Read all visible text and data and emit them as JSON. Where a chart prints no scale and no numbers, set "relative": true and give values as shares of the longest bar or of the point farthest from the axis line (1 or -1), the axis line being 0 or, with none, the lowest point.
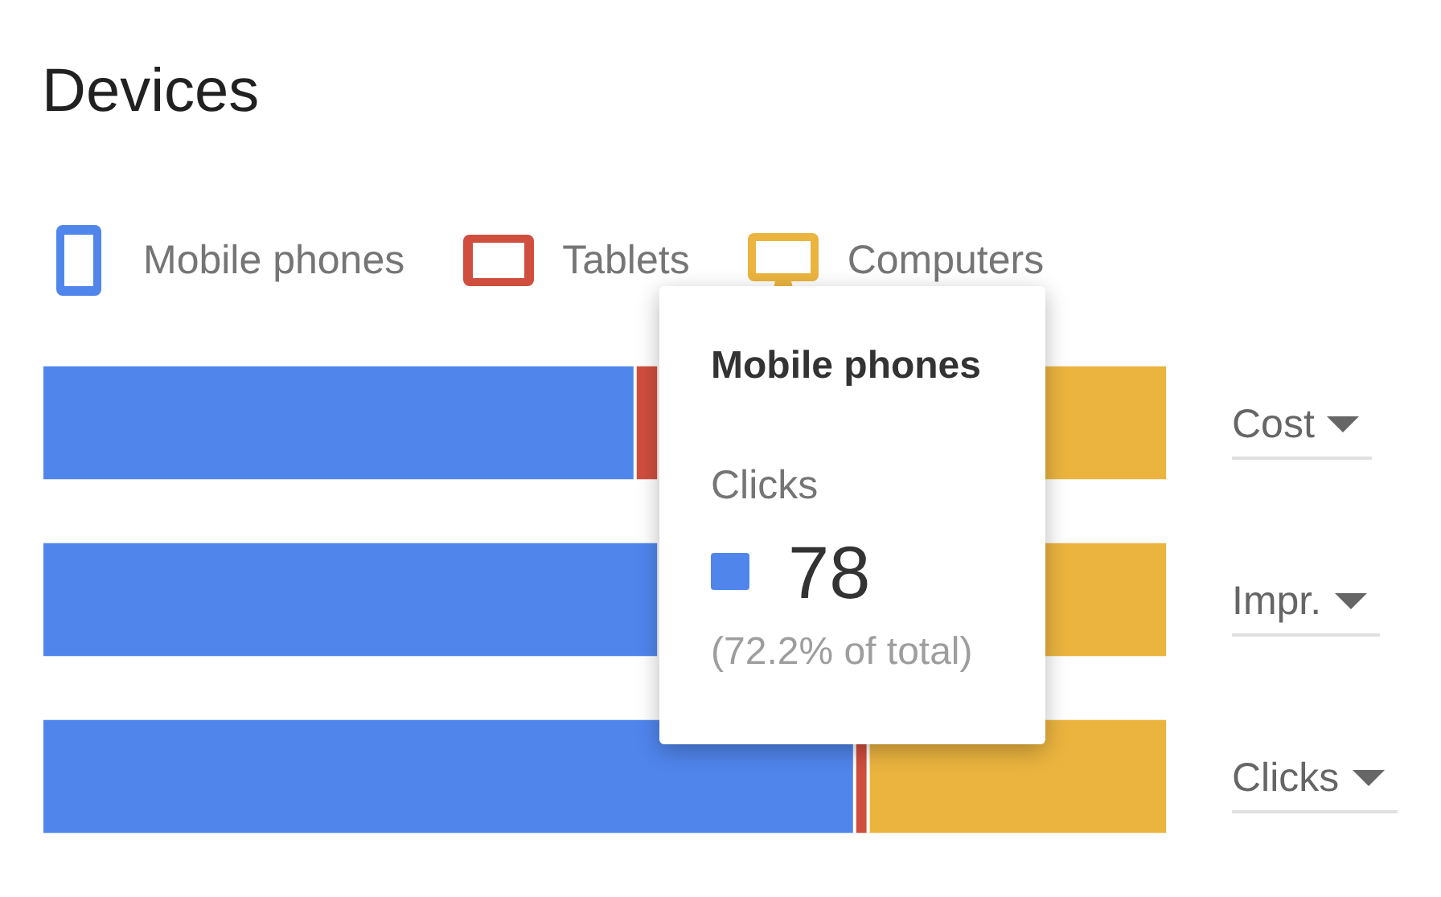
{
  "chart_data": {
    "type": "bar",
    "title": "Devices",
    "orientation": "horizontal",
    "stacked": true,
    "relative": true,
    "legend": "top left",
    "categories": [
      "Cost",
      "Impr.",
      "Clicks"
    ],
    "series": [
      {
        "name": "Mobile phones",
        "color": "#5085ec",
        "values": [
          0.527,
          0.548,
          0.722
        ]
      },
      {
        "name": "Tablets",
        "color": "#cf4e3e",
        "values": [
          0.021,
          null,
          0.012
        ]
      },
      {
        "name": "Computers",
        "color": "#ebb43f",
        "values": [
          0.452,
          0.452,
          0.266
        ]
      }
    ],
    "annotations": [
      "Mobile phones",
      "Clicks",
      "78",
      "(72.2% of total)"
    ]
  }
}
